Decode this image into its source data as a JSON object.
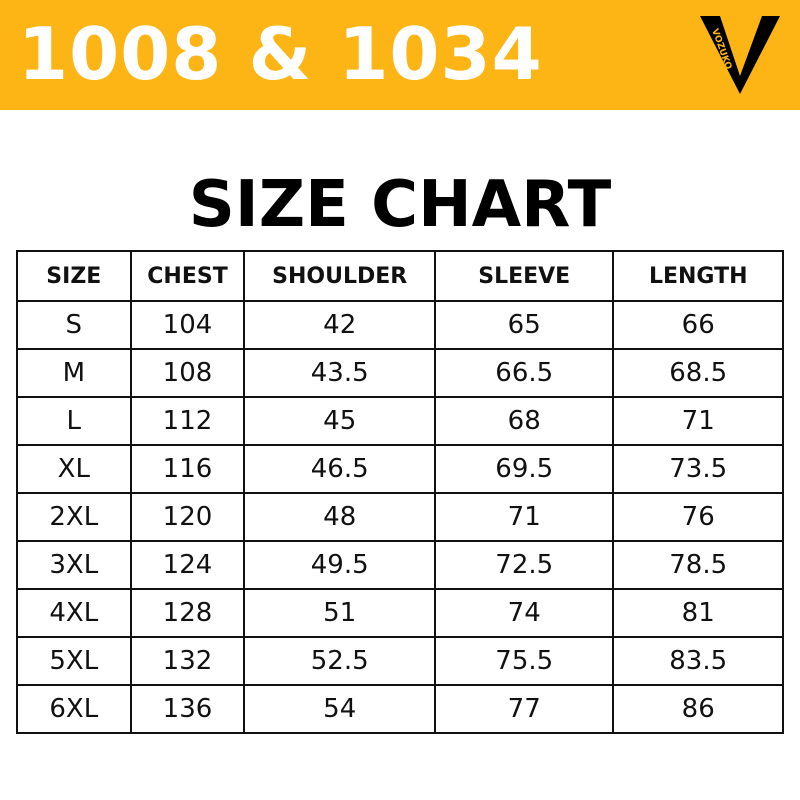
{
  "header": {
    "title": "1008 & 1034",
    "brand": "VOZUKO",
    "colors": {
      "banner": "#fdb515",
      "logo": "#000000"
    }
  },
  "title": "SIZE CHART",
  "table": {
    "columns": [
      "SIZE",
      "CHEST",
      "SHOULDER",
      "SLEEVE",
      "LENGTH"
    ],
    "rows": [
      [
        "S",
        "104",
        "42",
        "65",
        "66"
      ],
      [
        "M",
        "108",
        "43.5",
        "66.5",
        "68.5"
      ],
      [
        "L",
        "112",
        "45",
        "68",
        "71"
      ],
      [
        "XL",
        "116",
        "46.5",
        "69.5",
        "73.5"
      ],
      [
        "2XL",
        "120",
        "48",
        "71",
        "76"
      ],
      [
        "3XL",
        "124",
        "49.5",
        "72.5",
        "78.5"
      ],
      [
        "4XL",
        "128",
        "51",
        "74",
        "81"
      ],
      [
        "5XL",
        "132",
        "52.5",
        "75.5",
        "83.5"
      ],
      [
        "6XL",
        "136",
        "54",
        "77",
        "86"
      ]
    ]
  }
}
